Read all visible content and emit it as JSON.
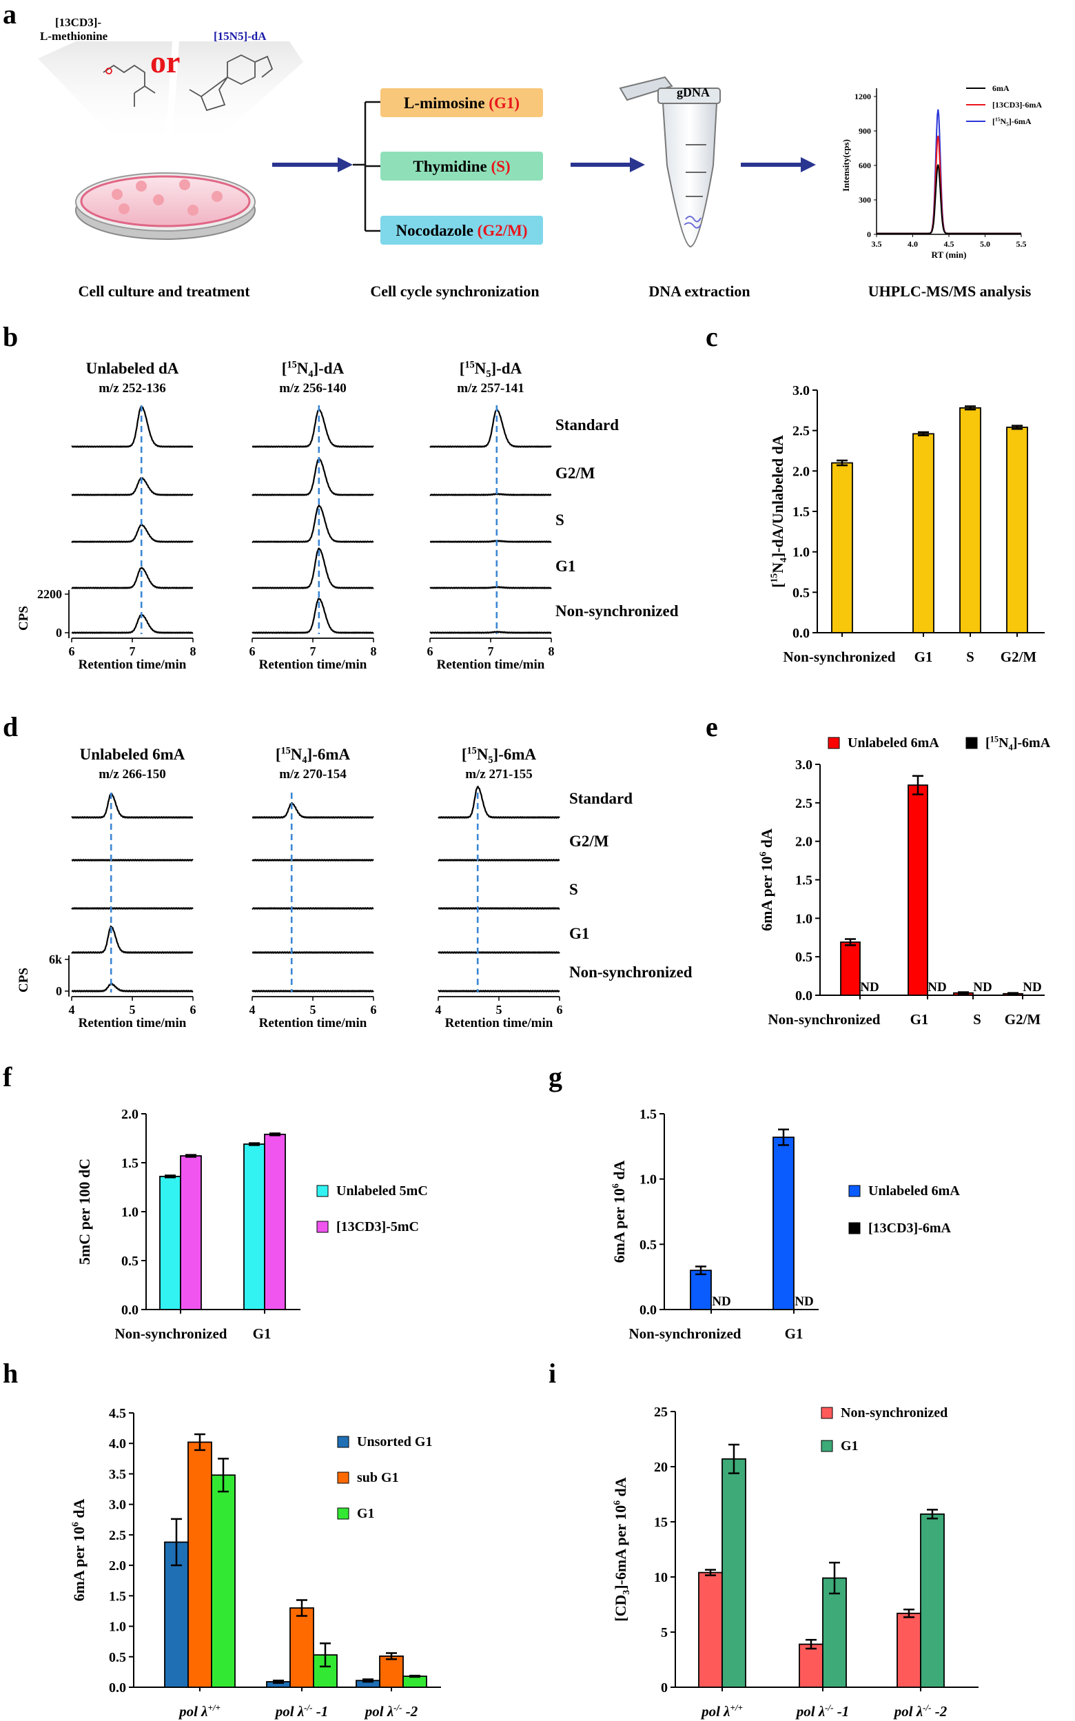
{
  "panel_labels": [
    "a",
    "b",
    "c",
    "d",
    "e",
    "f",
    "g",
    "h",
    "i"
  ],
  "panel_a": {
    "reagent_left_line1": "[13CD3]-",
    "reagent_left_line2": "L-methionine",
    "or_text": "or",
    "reagent_right": "[15N5]-dA",
    "drugs": [
      {
        "name": "L-mimosine",
        "phase": "(G1)",
        "color": "#f8c77a"
      },
      {
        "name": "Thymidine",
        "phase": "(S)",
        "color": "#8fe0b9"
      },
      {
        "name": "Nocodazole",
        "phase": "(G2/M)",
        "color": "#7fd7ea"
      }
    ],
    "gdna": "gDNA",
    "step_labels": [
      "Cell culture and treatment",
      "Cell cycle synchronization",
      "DNA extraction",
      "UHPLC-MS/MS analysis"
    ],
    "inset": {
      "ylabel": "Intensity(cps)",
      "xlabel": "RT (min)",
      "yticks": [
        "0",
        "300",
        "600",
        "900",
        "1200"
      ],
      "xticks": [
        "3.5",
        "4.0",
        "4.5",
        "5.0",
        "5.5"
      ],
      "legend": [
        {
          "label": "6mA",
          "color": "#000000"
        },
        {
          "label": "[13CD3]-6mA",
          "color": "#e8151b"
        },
        {
          "label": "[15N5]-6mA",
          "color": "#2a35d6"
        }
      ]
    }
  },
  "chart_data": [
    {
      "id": "a-inset",
      "type": "line",
      "xlabel": "RT (min)",
      "ylabel": "Intensity(cps)",
      "xlim": [
        3.5,
        5.5
      ],
      "ylim": [
        0,
        1200
      ],
      "peak_rt": 4.35,
      "series": [
        {
          "name": "6mA",
          "color": "#000000",
          "peak": 600
        },
        {
          "name": "[13CD3]-6mA",
          "color": "#e8151b",
          "peak": 850
        },
        {
          "name": "[15N5]-6mA",
          "color": "#2a35d6",
          "peak": 1080
        }
      ]
    },
    {
      "id": "b",
      "type": "line",
      "columns": [
        {
          "title": "Unlabeled dA",
          "mz": "m/z 252-136",
          "xticks": [
            "6",
            "7",
            "8"
          ],
          "xlim": [
            6,
            8
          ],
          "peak_rt": 7.15,
          "heights": {
            "Standard": 1.0,
            "G2/M": 0.42,
            "S": 0.42,
            "G1": 0.5,
            "Non-synchronized": 0.45
          }
        },
        {
          "title": "[15N4]-dA",
          "mz": "m/z 256-140",
          "xticks": [
            "6",
            "7",
            "8"
          ],
          "xlim": [
            6,
            8
          ],
          "peak_rt": 7.1,
          "heights": {
            "Standard": 0.92,
            "G2/M": 0.9,
            "S": 0.9,
            "G1": 0.98,
            "Non-synchronized": 0.85
          }
        },
        {
          "title": "[15N5]-dA",
          "mz": "m/z 257-141",
          "xticks": [
            "6",
            "7",
            "8"
          ],
          "xlim": [
            6,
            8
          ],
          "peak_rt": 7.1,
          "heights": {
            "Standard": 0.92,
            "G2/M": 0.02,
            "S": 0.02,
            "G1": 0.02,
            "Non-synchronized": 0.02
          }
        }
      ],
      "traces": [
        "Standard",
        "G2/M",
        "S",
        "G1",
        "Non-synchronized"
      ],
      "ylabel": "CPS",
      "yticks": [
        "2200",
        "0"
      ],
      "xlabel": "Retention time/min"
    },
    {
      "id": "c",
      "type": "bar",
      "categories": [
        "Non-synchronized",
        "G1",
        "S",
        "G2/M"
      ],
      "values": [
        2.1,
        2.46,
        2.78,
        2.54
      ],
      "errors": [
        0.03,
        0.02,
        0.02,
        0.02
      ],
      "ylabel": "[15N4]-dA/Unlabeled dA",
      "ylim": [
        0,
        3.0
      ],
      "yticks": [
        "0.0",
        "0.5",
        "1.0",
        "1.5",
        "2.0",
        "2.5",
        "3.0"
      ],
      "color": "#f8c60a"
    },
    {
      "id": "d",
      "type": "line",
      "columns": [
        {
          "title": "Unlabeled 6mA",
          "mz": "m/z 266-150",
          "xticks": [
            "4",
            "5",
            "6"
          ],
          "xlim": [
            4,
            6
          ],
          "peak_rt": 4.65,
          "heights": {
            "Standard": 1.0,
            "G2/M": 0.0,
            "S": 0.0,
            "G1": 1.1,
            "Non-synchronized": 0.3
          }
        },
        {
          "title": "[15N4]-6mA",
          "mz": "m/z 270-154",
          "xticks": [
            "4",
            "5",
            "6"
          ],
          "xlim": [
            4,
            6
          ],
          "peak_rt": 4.65,
          "heights": {
            "Standard": 0.6,
            "G2/M": 0.0,
            "S": 0.0,
            "G1": 0.0,
            "Non-synchronized": 0.0
          }
        },
        {
          "title": "[15N5]-6mA",
          "mz": "m/z 271-155",
          "xticks": [
            "4",
            "5",
            "6"
          ],
          "xlim": [
            4,
            6
          ],
          "peak_rt": 4.65,
          "heights": {
            "Standard": 1.3,
            "G2/M": 0.0,
            "S": 0.0,
            "G1": 0.0,
            "Non-synchronized": 0.0
          }
        }
      ],
      "traces": [
        "Standard",
        "G2/M",
        "S",
        "G1",
        "Non-synchronized"
      ],
      "ylabel": "CPS",
      "yticks": [
        "6k",
        "0"
      ],
      "xlabel": "Retention time/min"
    },
    {
      "id": "e",
      "type": "bar",
      "categories": [
        "Non-synchronized",
        "G1",
        "S",
        "G2/M"
      ],
      "series": [
        {
          "name": "Unlabeled 6mA",
          "color": "#ff0000",
          "values": [
            0.69,
            2.73,
            0.03,
            0.02
          ],
          "errors": [
            0.04,
            0.12,
            0.01,
            0.01
          ]
        },
        {
          "name": "[15N4]-6mA",
          "color": "#000000",
          "values": [
            null,
            null,
            null,
            null
          ],
          "labels": [
            "ND",
            "ND",
            "ND",
            "ND"
          ]
        }
      ],
      "ylabel": "6mA per 10^6 dA",
      "ylim": [
        0,
        3.0
      ],
      "yticks": [
        "0.0",
        "0.5",
        "1.0",
        "1.5",
        "2.0",
        "2.5",
        "3.0"
      ]
    },
    {
      "id": "f",
      "type": "bar",
      "categories": [
        "Non-synchronized",
        "G1"
      ],
      "series": [
        {
          "name": "Unlabeled 5mC",
          "color": "#33f2f2",
          "values": [
            1.36,
            1.69
          ],
          "errors": [
            0.01,
            0.01
          ]
        },
        {
          "name": "[13CD3]-5mC",
          "color": "#f055f0",
          "values": [
            1.57,
            1.79
          ],
          "errors": [
            0.01,
            0.01
          ]
        }
      ],
      "ylabel": "5mC per 100 dC",
      "ylim": [
        0,
        2.0
      ],
      "yticks": [
        "0.0",
        "0.5",
        "1.0",
        "1.5",
        "2.0"
      ]
    },
    {
      "id": "g",
      "type": "bar",
      "categories": [
        "Non-synchronized",
        "G1"
      ],
      "series": [
        {
          "name": "Unlabeled 6mA",
          "color": "#0a5cff",
          "values": [
            0.3,
            1.32
          ],
          "errors": [
            0.03,
            0.06
          ]
        },
        {
          "name": "[13CD3]-6mA",
          "color": "#000000",
          "values": [
            null,
            null
          ],
          "labels": [
            "ND",
            "ND"
          ]
        }
      ],
      "ylabel": "6mA per 10^6 dA",
      "ylim": [
        0,
        1.5
      ],
      "yticks": [
        "0.0",
        "0.5",
        "1.0",
        "1.5"
      ]
    },
    {
      "id": "h",
      "type": "bar",
      "categories": [
        "pol λ+/+",
        "pol λ-/- -1",
        "pol λ-/- -2"
      ],
      "series": [
        {
          "name": "Unsorted G1",
          "color": "#1f6fb5",
          "values": [
            2.38,
            0.09,
            0.11
          ],
          "errors": [
            0.38,
            0.02,
            0.02
          ]
        },
        {
          "name": "sub G1",
          "color": "#ff6a00",
          "values": [
            4.02,
            1.3,
            0.51
          ],
          "errors": [
            0.13,
            0.13,
            0.05
          ]
        },
        {
          "name": "G1",
          "color": "#33e833",
          "values": [
            3.48,
            0.53,
            0.18
          ],
          "errors": [
            0.27,
            0.19,
            0.01
          ]
        }
      ],
      "ylabel": "6mA per 10^6 dA",
      "ylim": [
        0,
        4.5
      ],
      "yticks": [
        "0.0",
        "0.5",
        "1.0",
        "1.5",
        "2.0",
        "2.5",
        "3.0",
        "3.5",
        "4.0",
        "4.5"
      ]
    },
    {
      "id": "i",
      "type": "bar",
      "categories": [
        "pol λ+/+",
        "pol λ-/- -1",
        "pol λ-/- -2"
      ],
      "series": [
        {
          "name": "Non-synchronized",
          "color": "#ff5a5a",
          "values": [
            10.4,
            3.9,
            6.7
          ],
          "errors": [
            0.25,
            0.4,
            0.35
          ]
        },
        {
          "name": "G1",
          "color": "#3daa78",
          "values": [
            20.7,
            9.9,
            15.7
          ],
          "errors": [
            1.3,
            1.4,
            0.4
          ]
        }
      ],
      "ylabel": "[CD3]-6mA per 10^6 dA",
      "ylim": [
        0,
        25
      ],
      "yticks": [
        "0",
        "5",
        "10",
        "15",
        "20",
        "25"
      ]
    }
  ],
  "nd_label": "ND"
}
